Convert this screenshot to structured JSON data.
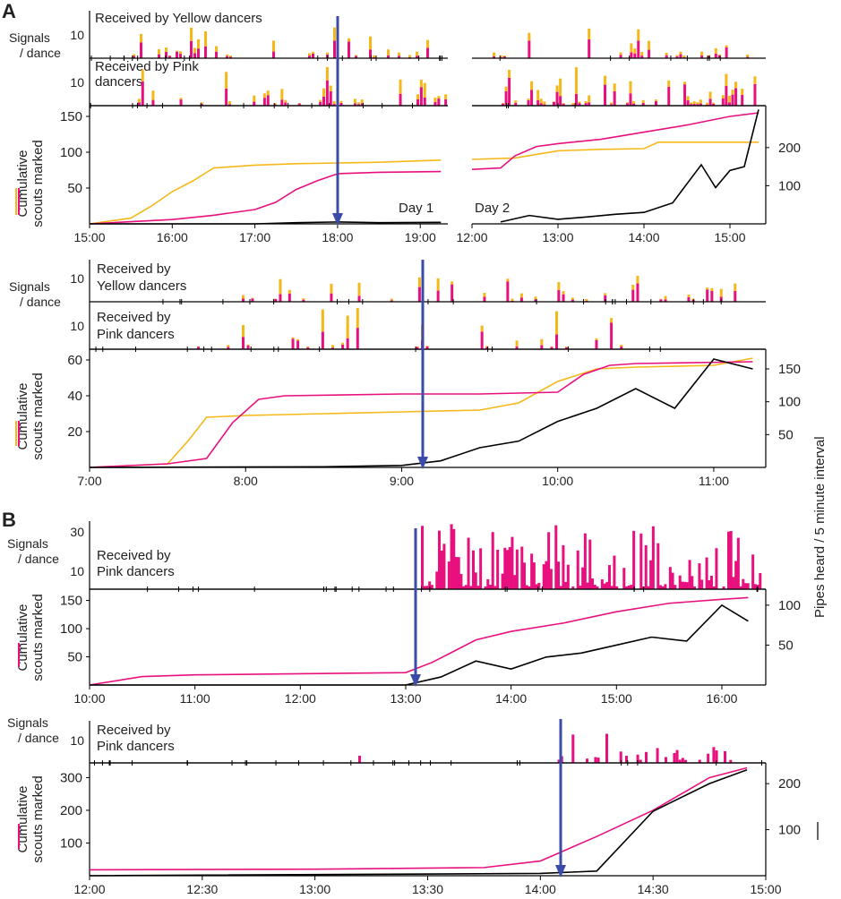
{
  "figure": {
    "panel_letters": [
      "A",
      "B"
    ],
    "right_axis_label": "Pipes heard / 5 minute interval",
    "signals_ylabel": [
      "Signals",
      "/ dance"
    ],
    "cumulative_ylabel": [
      "Cumulative",
      "scouts marked"
    ],
    "received_yellow": "Received by Yellow dancers",
    "received_pink_2line": [
      "Received by Pink",
      "dancers"
    ],
    "received_yellow_2line": [
      "Received by",
      "Yellow dancers"
    ],
    "received_pink_2line_b": [
      "Received by",
      "Pink dancers"
    ],
    "day1": "Day 1",
    "day2": "Day 2"
  },
  "colors": {
    "pink": "#e8107f",
    "yellow": "#f5b819",
    "pipes": "#000000",
    "arrow": "#3a4ba8",
    "axis": "#000000"
  },
  "chart_data": [
    {
      "id": "A1",
      "type": "line",
      "x_ticks": [
        "15:00",
        "16:00",
        "17:00",
        "18:00",
        "19:00",
        "12:00",
        "13:00",
        "14:00",
        "15:00"
      ],
      "left_ticks": [
        50,
        100,
        150
      ],
      "right_ticks": [
        100,
        200
      ],
      "signals_ticks": [
        10
      ],
      "annotations": [
        "Day 1",
        "Day 2"
      ],
      "series": [
        {
          "name": "Cumulative scouts marked (Yellow)",
          "color": "yellow",
          "day1_x": [
            "15:00",
            "15:30",
            "15:45",
            "16:00",
            "16:15",
            "16:30",
            "17:00",
            "17:30",
            "18:00",
            "18:30",
            "19:15"
          ],
          "day1_y": [
            0,
            8,
            25,
            45,
            60,
            78,
            82,
            84,
            85,
            86,
            89
          ],
          "day2_x": [
            "12:00",
            "12:30",
            "12:45",
            "13:00",
            "13:30",
            "14:00",
            "14:10",
            "14:30",
            "15:00",
            "15:20"
          ],
          "day2_y": [
            90,
            92,
            97,
            102,
            104,
            105,
            114,
            114,
            114,
            114
          ]
        },
        {
          "name": "Cumulative scouts marked (Pink)",
          "color": "pink",
          "day1_x": [
            "15:00",
            "15:30",
            "16:00",
            "16:30",
            "17:00",
            "17:15",
            "17:30",
            "17:45",
            "18:00",
            "18:30",
            "19:15"
          ],
          "day1_y": [
            0,
            3,
            6,
            12,
            20,
            30,
            48,
            60,
            70,
            72,
            73
          ],
          "day2_x": [
            "12:00",
            "12:20",
            "12:30",
            "12:45",
            "13:00",
            "13:30",
            "14:00",
            "14:30",
            "15:00",
            "15:20"
          ],
          "day2_y": [
            76,
            78,
            95,
            108,
            112,
            118,
            128,
            138,
            150,
            155
          ]
        },
        {
          "name": "Pipes heard",
          "color": "pipes",
          "day1_x": [
            "15:00",
            "17:00",
            "17:30",
            "18:00",
            "18:30",
            "19:15"
          ],
          "day1_y": [
            0,
            0,
            3,
            5,
            3,
            4
          ],
          "day2_x": [
            "12:20",
            "12:40",
            "13:00",
            "13:20",
            "13:40",
            "14:00",
            "14:20",
            "14:40",
            "14:50",
            "15:00",
            "15:10",
            "15:20"
          ],
          "day2_y": [
            5,
            22,
            12,
            18,
            25,
            30,
            55,
            155,
            95,
            140,
            150,
            300
          ]
        }
      ]
    },
    {
      "id": "A2",
      "type": "line",
      "x_ticks": [
        "7:00",
        "8:00",
        "9:00",
        "10:00",
        "11:00"
      ],
      "left_ticks": [
        20,
        40,
        60
      ],
      "right_ticks": [
        50,
        100,
        150
      ],
      "signals_ticks": [
        10
      ],
      "series": [
        {
          "name": "Cumulative scouts marked (Yellow)",
          "color": "yellow",
          "x": [
            "7:00",
            "7:30",
            "7:38",
            "7:45",
            "8:00",
            "8:30",
            "9:00",
            "9:30",
            "9:45",
            "10:00",
            "10:15",
            "10:30",
            "11:00",
            "11:15"
          ],
          "y": [
            0,
            2,
            15,
            28,
            29,
            30,
            31,
            32,
            36,
            48,
            55,
            56,
            57,
            61
          ]
        },
        {
          "name": "Cumulative scouts marked (Pink)",
          "color": "pink",
          "x": [
            "7:00",
            "7:30",
            "7:45",
            "7:55",
            "8:05",
            "8:15",
            "9:00",
            "9:30",
            "10:00",
            "10:10",
            "10:20",
            "10:30",
            "11:15"
          ],
          "y": [
            0,
            2,
            5,
            25,
            38,
            40,
            41,
            41,
            42,
            52,
            57,
            58,
            59
          ]
        },
        {
          "name": "Pipes heard",
          "color": "pipes",
          "x": [
            "7:00",
            "8:30",
            "9:00",
            "9:15",
            "9:30",
            "9:45",
            "10:00",
            "10:15",
            "10:30",
            "10:45",
            "11:00",
            "11:15"
          ],
          "y": [
            0,
            1,
            3,
            10,
            30,
            40,
            70,
            90,
            120,
            90,
            165,
            150
          ]
        }
      ]
    },
    {
      "id": "B1",
      "type": "line",
      "x_ticks": [
        "10:00",
        "11:00",
        "12:00",
        "13:00",
        "14:00",
        "15:00",
        "16:00"
      ],
      "left_ticks": [
        50,
        100,
        150
      ],
      "right_ticks": [
        50,
        100
      ],
      "signals_ticks": [
        10,
        20,
        30
      ],
      "series": [
        {
          "name": "Cumulative scouts marked (Pink)",
          "color": "pink",
          "x": [
            "10:00",
            "10:30",
            "11:00",
            "12:00",
            "13:00",
            "13:15",
            "13:40",
            "14:00",
            "14:30",
            "15:00",
            "15:30",
            "16:00",
            "16:15"
          ],
          "y": [
            0,
            15,
            18,
            20,
            22,
            40,
            80,
            95,
            110,
            130,
            145,
            152,
            155
          ]
        },
        {
          "name": "Pipes heard",
          "color": "pipes",
          "x": [
            "10:00",
            "13:00",
            "13:20",
            "13:40",
            "14:00",
            "14:20",
            "14:40",
            "15:00",
            "15:20",
            "15:40",
            "16:00",
            "16:15"
          ],
          "y": [
            0,
            0,
            10,
            30,
            20,
            35,
            40,
            50,
            60,
            55,
            100,
            80
          ]
        }
      ]
    },
    {
      "id": "B2",
      "type": "line",
      "x_ticks": [
        "12:00",
        "12:30",
        "13:00",
        "13:30",
        "14:00",
        "14:30",
        "15:00"
      ],
      "left_ticks": [
        100,
        200,
        300
      ],
      "right_ticks": [
        100,
        200
      ],
      "signals_ticks": [
        10
      ],
      "series": [
        {
          "name": "Cumulative scouts marked (Pink)",
          "color": "pink",
          "x": [
            "12:00",
            "13:00",
            "13:45",
            "14:00",
            "14:15",
            "14:30",
            "14:45",
            "14:55"
          ],
          "y": [
            18,
            20,
            25,
            45,
            120,
            200,
            300,
            330
          ]
        },
        {
          "name": "Pipes heard",
          "color": "pipes",
          "x": [
            "12:00",
            "14:00",
            "14:15",
            "14:30",
            "14:45",
            "14:55"
          ],
          "y": [
            0,
            5,
            10,
            140,
            200,
            230
          ]
        }
      ]
    }
  ]
}
